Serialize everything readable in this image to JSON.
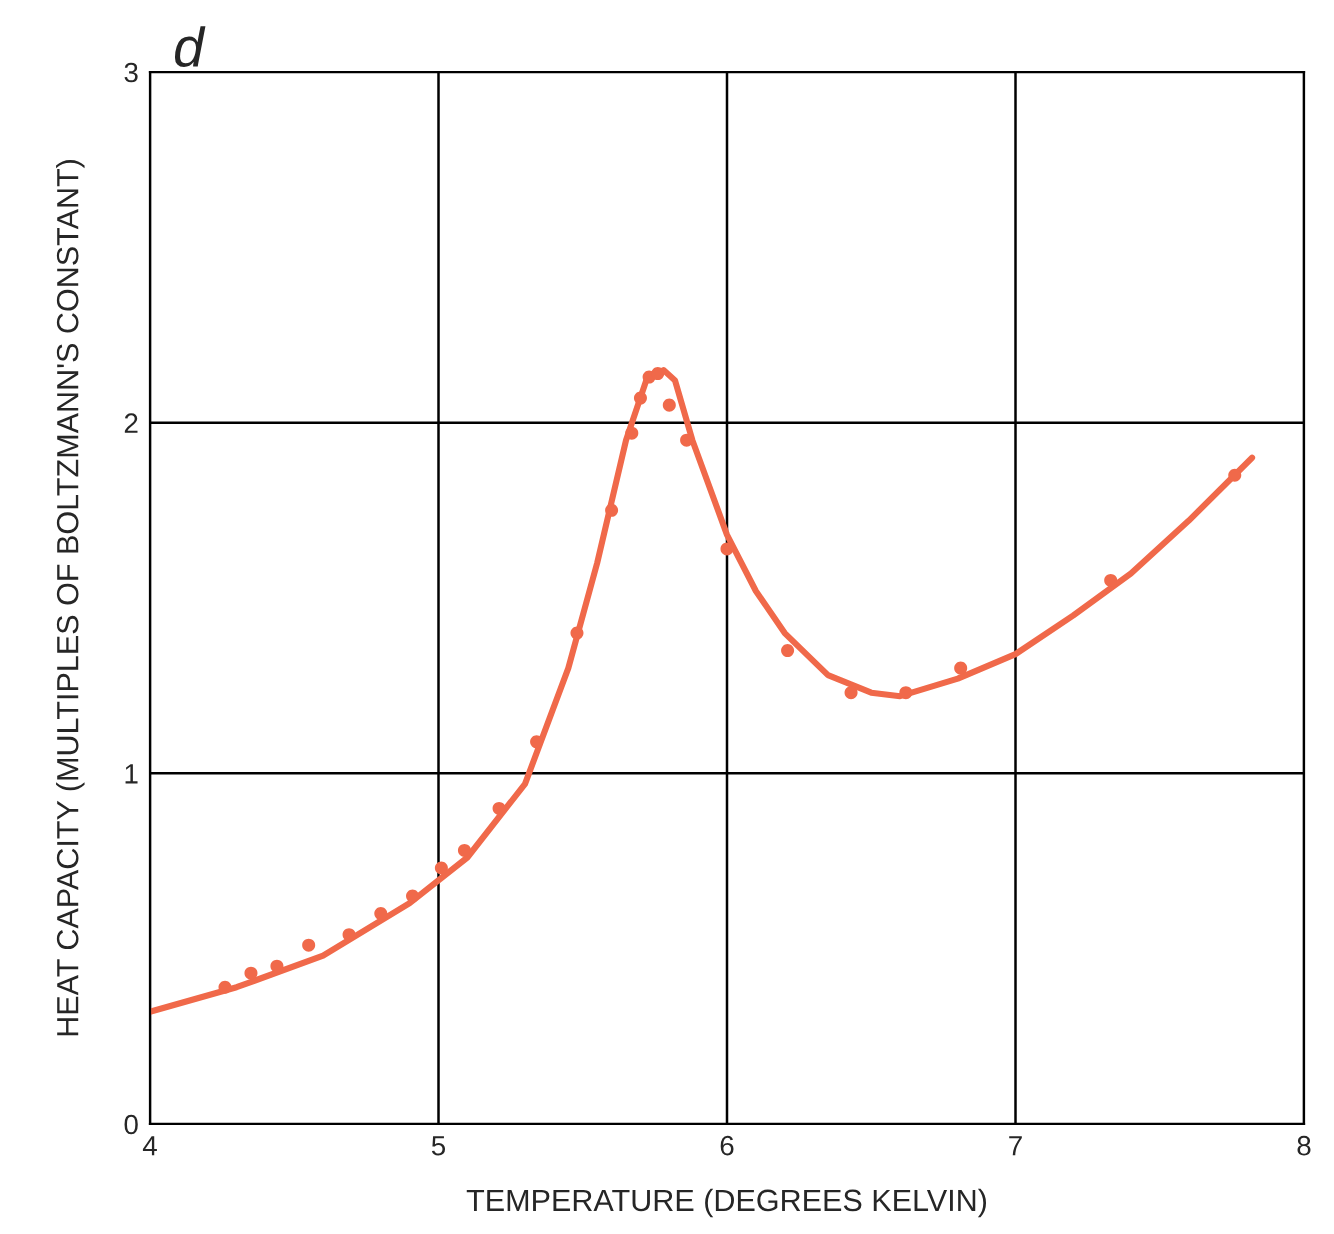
{
  "chart_data": {
    "type": "scatter",
    "title": "d",
    "xlabel": "TEMPERATURE (DEGREES KELVIN)",
    "ylabel": "HEAT CAPACITY (MULTIPLES OF BOLTZMANN'S CONSTANT)",
    "xlim": [
      4,
      8
    ],
    "ylim": [
      0,
      3
    ],
    "xticks": [
      4,
      5,
      6,
      7,
      8
    ],
    "yticks": [
      0,
      1,
      2,
      3
    ],
    "grid": true,
    "legend": false,
    "series": [
      {
        "marker": "circle",
        "color": "#f0694a",
        "x": [
          4.26,
          4.35,
          4.44,
          4.55,
          4.69,
          4.8,
          4.91,
          5.01,
          5.09,
          5.21,
          5.34,
          5.48,
          5.6,
          5.67,
          5.7,
          5.73,
          5.76,
          5.8,
          5.86,
          6.0,
          6.21,
          6.43,
          6.62,
          6.81,
          7.33,
          7.76
        ],
        "values": [
          0.39,
          0.43,
          0.45,
          0.51,
          0.54,
          0.6,
          0.65,
          0.73,
          0.78,
          0.9,
          1.09,
          1.4,
          1.75,
          1.97,
          2.07,
          2.13,
          2.14,
          2.05,
          1.95,
          1.64,
          1.35,
          1.23,
          1.23,
          1.3,
          1.55,
          1.85
        ]
      },
      {
        "type": "line",
        "marker": "none",
        "line_style": "solid",
        "color": "#f0694a",
        "x": [
          4.0,
          4.3,
          4.6,
          4.9,
          5.1,
          5.3,
          5.45,
          5.55,
          5.65,
          5.72,
          5.78,
          5.82,
          5.88,
          6.0,
          6.1,
          6.2,
          6.35,
          6.5,
          6.6,
          6.8,
          7.0,
          7.2,
          7.4,
          7.6,
          7.82
        ],
        "values": [
          0.32,
          0.39,
          0.48,
          0.63,
          0.76,
          0.97,
          1.3,
          1.6,
          1.95,
          2.12,
          2.15,
          2.12,
          1.95,
          1.68,
          1.52,
          1.4,
          1.28,
          1.23,
          1.22,
          1.27,
          1.34,
          1.45,
          1.57,
          1.72,
          1.9
        ]
      }
    ]
  }
}
